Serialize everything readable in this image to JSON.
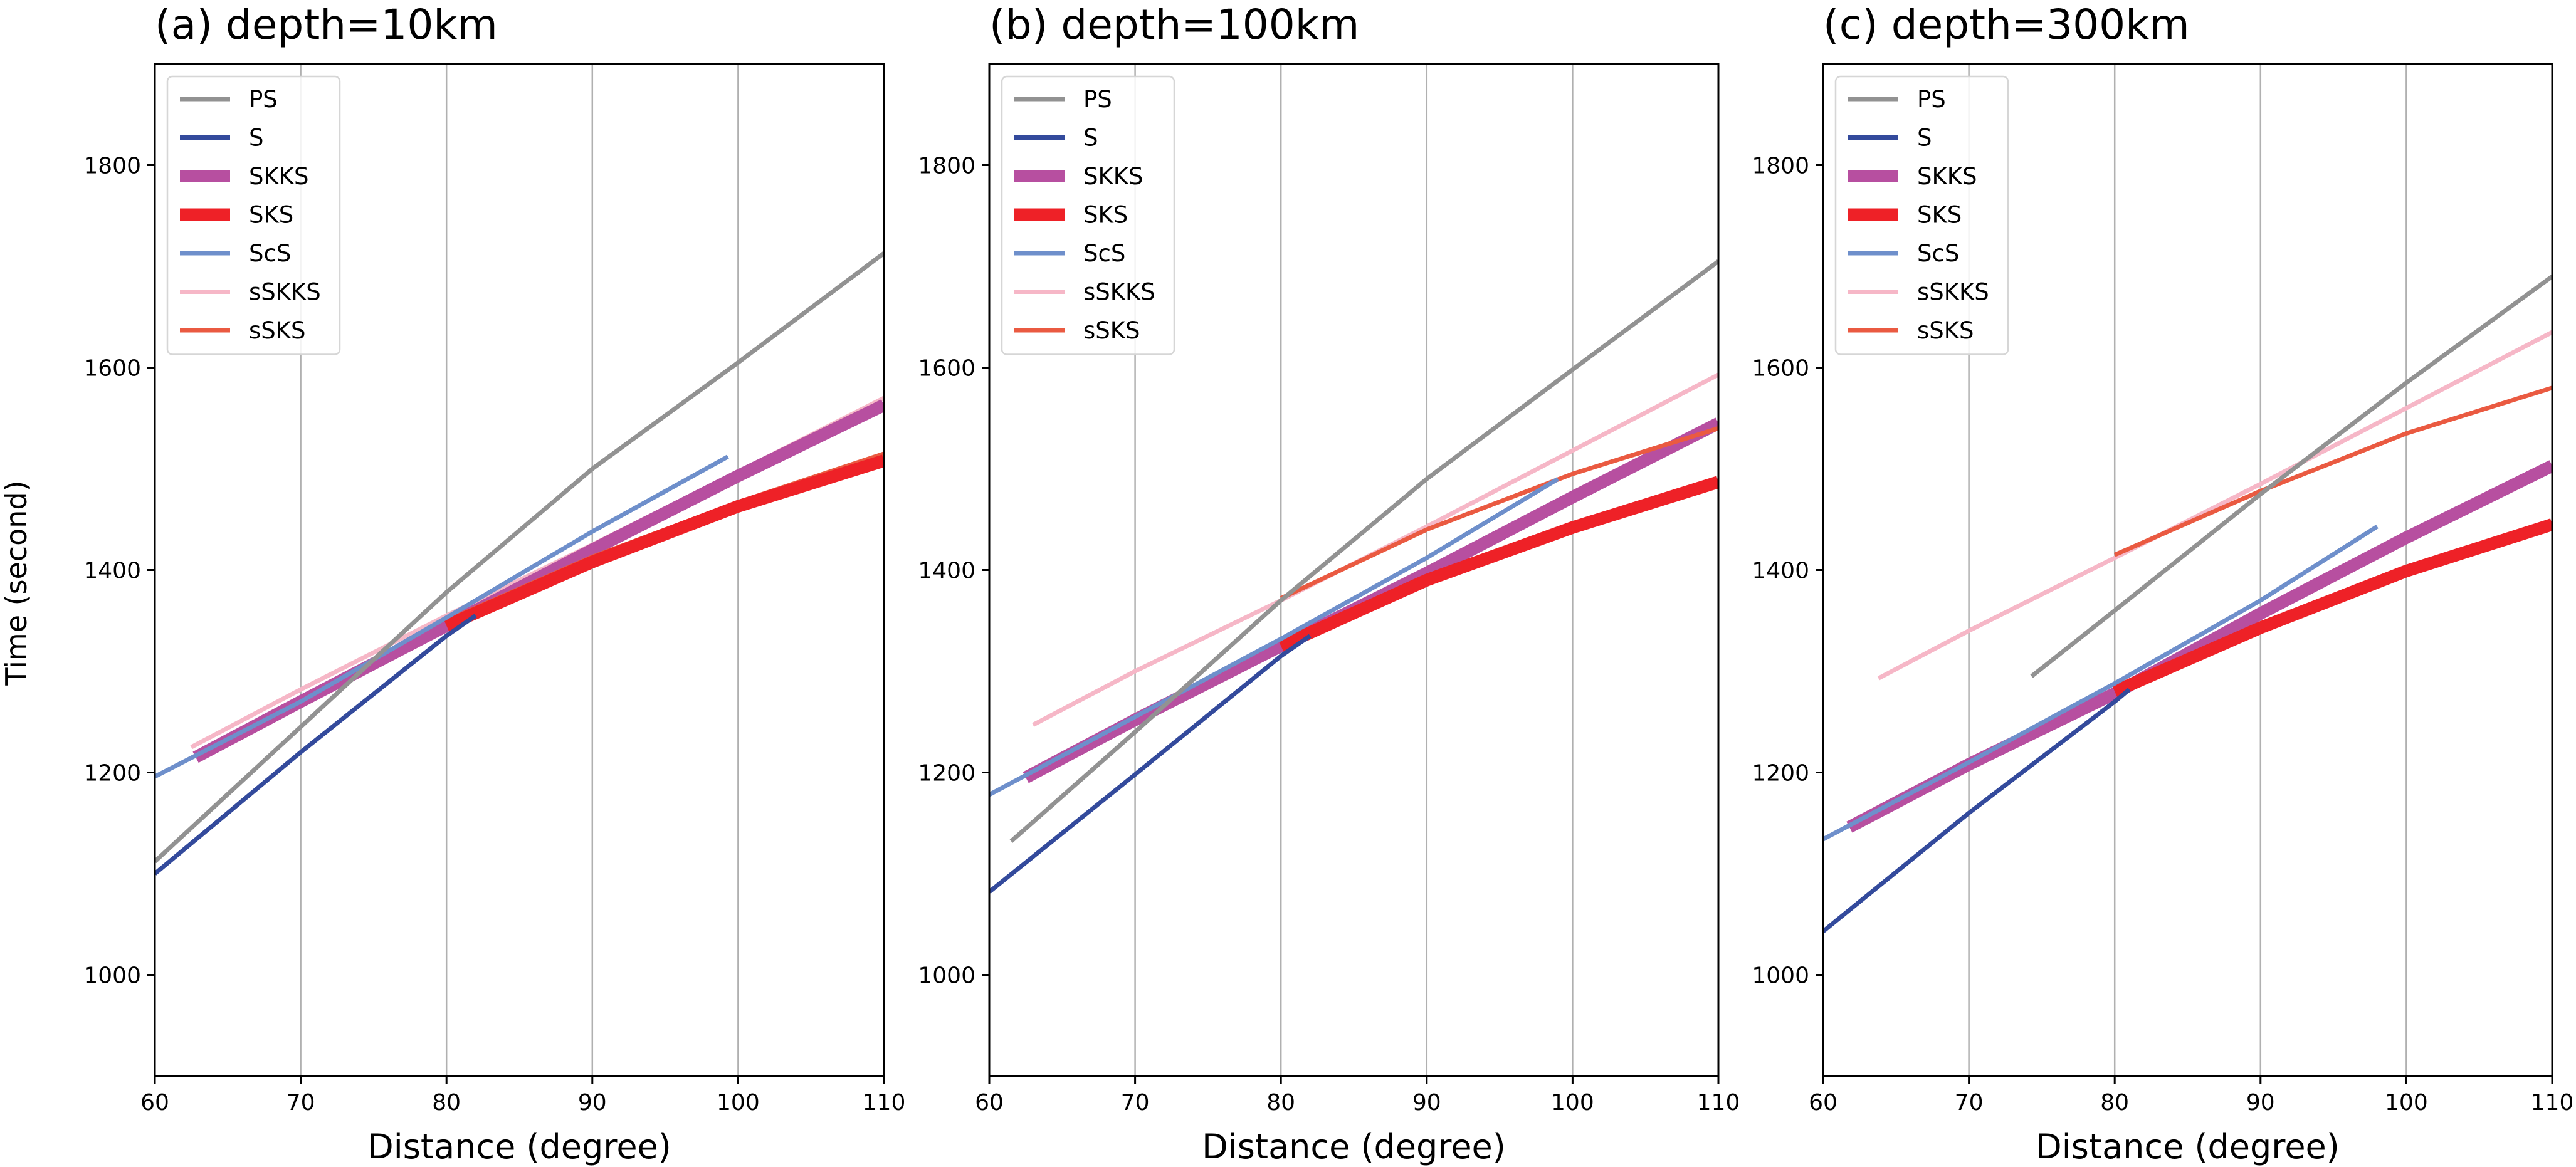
{
  "figure": {
    "ylabel": "Time (second)",
    "xlabel": "Distance (degree)"
  },
  "legend": [
    {
      "name": "PS",
      "color": "#929292",
      "weight": "normal"
    },
    {
      "name": "S",
      "color": "#334a9c",
      "weight": "normal"
    },
    {
      "name": "SKKS",
      "color": "#b74fa0",
      "weight": "thick"
    },
    {
      "name": "SKS",
      "color": "#ee2127",
      "weight": "thick"
    },
    {
      "name": "ScS",
      "color": "#6e8fcb",
      "weight": "normal"
    },
    {
      "name": "sSKKS",
      "color": "#f6b7c7",
      "weight": "normal"
    },
    {
      "name": "sSKS",
      "color": "#ea5a41",
      "weight": "normal"
    }
  ],
  "chart_data": [
    {
      "type": "line",
      "title": "(a) depth=10km",
      "xlabel": "Distance (degree)",
      "ylabel": "Time (second)",
      "xlim": [
        60,
        110
      ],
      "ylim": [
        900,
        1900
      ],
      "xticks": [
        60,
        70,
        80,
        90,
        100,
        110
      ],
      "yticks": [
        1000,
        1200,
        1400,
        1600,
        1800
      ],
      "grid": "x-only",
      "legend_position": "top-left",
      "series": [
        {
          "name": "sSKKS",
          "x": [
            62.5,
            70,
            80,
            90,
            100,
            110
          ],
          "y": [
            1225,
            1282,
            1355,
            1425,
            1497,
            1570
          ]
        },
        {
          "name": "SKKS",
          "x": [
            62.8,
            70,
            80,
            90,
            100,
            110
          ],
          "y": [
            1215,
            1270,
            1345,
            1420,
            1493,
            1563
          ]
        },
        {
          "name": "sSKS",
          "x": [
            80,
            90,
            100,
            110
          ],
          "y": [
            1350,
            1413,
            1467,
            1515
          ]
        },
        {
          "name": "SKS",
          "x": [
            80,
            90,
            100,
            110
          ],
          "y": [
            1345,
            1408,
            1463,
            1508
          ]
        },
        {
          "name": "ScS",
          "x": [
            60,
            70,
            80,
            90,
            99.3
          ],
          "y": [
            1196,
            1270,
            1353,
            1438,
            1512
          ]
        },
        {
          "name": "S",
          "x": [
            60,
            70,
            80,
            82
          ],
          "y": [
            1100,
            1220,
            1335,
            1355
          ]
        },
        {
          "name": "PS",
          "x": [
            60,
            70,
            80,
            90,
            100,
            110
          ],
          "y": [
            1112,
            1245,
            1378,
            1500,
            1605,
            1713
          ]
        }
      ]
    },
    {
      "type": "line",
      "title": "(b) depth=100km",
      "xlabel": "Distance (degree)",
      "ylabel": "",
      "xlim": [
        60,
        110
      ],
      "ylim": [
        900,
        1900
      ],
      "xticks": [
        60,
        70,
        80,
        90,
        100,
        110
      ],
      "yticks": [
        1000,
        1200,
        1400,
        1600,
        1800
      ],
      "grid": "x-only",
      "legend_position": "top-left",
      "series": [
        {
          "name": "sSKKS",
          "x": [
            63,
            70,
            80,
            90,
            100,
            110
          ],
          "y": [
            1247,
            1300,
            1370,
            1443,
            1518,
            1593
          ]
        },
        {
          "name": "SKKS",
          "x": [
            62.5,
            70,
            80,
            90,
            100,
            110
          ],
          "y": [
            1195,
            1252,
            1325,
            1397,
            1472,
            1545
          ]
        },
        {
          "name": "sSKS",
          "x": [
            80,
            90,
            100,
            110
          ],
          "y": [
            1372,
            1440,
            1495,
            1540
          ]
        },
        {
          "name": "SKS",
          "x": [
            80,
            90,
            100,
            110
          ],
          "y": [
            1325,
            1390,
            1442,
            1487
          ]
        },
        {
          "name": "ScS",
          "x": [
            60,
            70,
            80,
            90,
            99
          ],
          "y": [
            1178,
            1255,
            1332,
            1412,
            1490
          ]
        },
        {
          "name": "S",
          "x": [
            60,
            70,
            80,
            82
          ],
          "y": [
            1082,
            1198,
            1315,
            1335
          ]
        },
        {
          "name": "PS",
          "x": [
            61.5,
            70,
            80,
            90,
            100,
            110
          ],
          "y": [
            1132,
            1240,
            1370,
            1490,
            1598,
            1705
          ]
        }
      ]
    },
    {
      "type": "line",
      "title": "(c) depth=300km",
      "xlabel": "Distance (degree)",
      "ylabel": "",
      "xlim": [
        60,
        110
      ],
      "ylim": [
        900,
        1900
      ],
      "xticks": [
        60,
        70,
        80,
        90,
        100,
        110
      ],
      "yticks": [
        1000,
        1200,
        1400,
        1600,
        1800
      ],
      "grid": "x-only",
      "legend_position": "top-left",
      "series": [
        {
          "name": "sSKKS",
          "x": [
            63.8,
            70,
            80,
            90,
            100,
            110
          ],
          "y": [
            1293,
            1340,
            1412,
            1485,
            1560,
            1635
          ]
        },
        {
          "name": "SKKS",
          "x": [
            61.8,
            70,
            80,
            90,
            100,
            110
          ],
          "y": [
            1146,
            1208,
            1278,
            1357,
            1432,
            1503
          ]
        },
        {
          "name": "sSKS",
          "x": [
            80,
            90,
            100,
            110
          ],
          "y": [
            1415,
            1478,
            1535,
            1580
          ]
        },
        {
          "name": "SKS",
          "x": [
            80,
            90,
            100,
            110
          ],
          "y": [
            1280,
            1343,
            1399,
            1445
          ]
        },
        {
          "name": "ScS",
          "x": [
            60,
            70,
            80,
            90,
            98
          ],
          "y": [
            1134,
            1210,
            1288,
            1370,
            1443
          ]
        },
        {
          "name": "S",
          "x": [
            60,
            70,
            80,
            81
          ],
          "y": [
            1043,
            1160,
            1270,
            1282
          ]
        },
        {
          "name": "PS",
          "x": [
            74.3,
            80,
            90,
            100,
            110
          ],
          "y": [
            1295,
            1360,
            1475,
            1585,
            1690
          ]
        }
      ]
    }
  ]
}
